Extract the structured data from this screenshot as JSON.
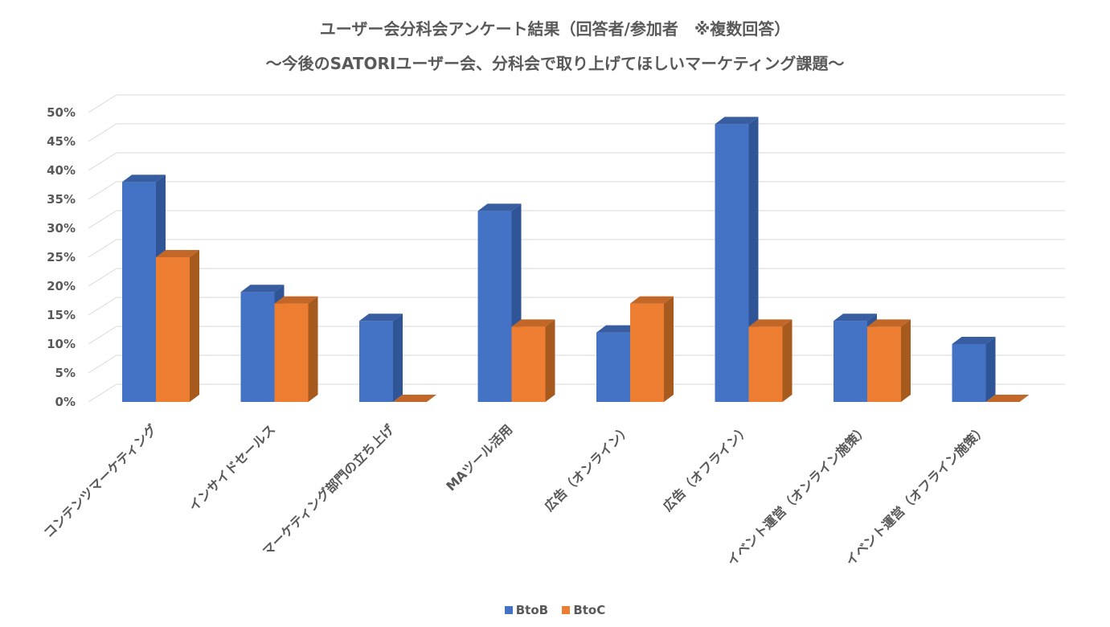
{
  "chart_data": {
    "type": "bar",
    "title": "ユーザー会分科会アンケート結果（回答者/参加者　※複数回答）",
    "subtitle": "～今後のSATORIユーザー会、分科会で取り上げてほしいマーケティング課題～",
    "categories": [
      "コンテンツマーケティング",
      "インサイドセールス",
      "マーケティング部門の立ち上げ",
      "MAツール活用",
      "広告（オンライン）",
      "広告（オフライン）",
      "イベント運営（オンライン施策）",
      "イベント運営（オフライン施策）"
    ],
    "series": [
      {
        "name": "BtoB",
        "color": "#4472C4",
        "side_color": "#2F5597",
        "values": [
          0.38,
          0.19,
          0.14,
          0.33,
          0.12,
          0.48,
          0.14,
          0.1
        ]
      },
      {
        "name": "BtoC",
        "color": "#ED7D31",
        "side_color": "#A65A1E",
        "values": [
          0.25,
          0.17,
          0.0,
          0.13,
          0.17,
          0.13,
          0.13,
          0.0
        ]
      }
    ],
    "y_ticks": [
      "0%",
      "5%",
      "10%",
      "15%",
      "20%",
      "25%",
      "30%",
      "35%",
      "40%",
      "45%",
      "50%"
    ],
    "ylim": [
      0,
      0.5
    ],
    "grid": true,
    "legend_position": "bottom",
    "three_d": true
  }
}
